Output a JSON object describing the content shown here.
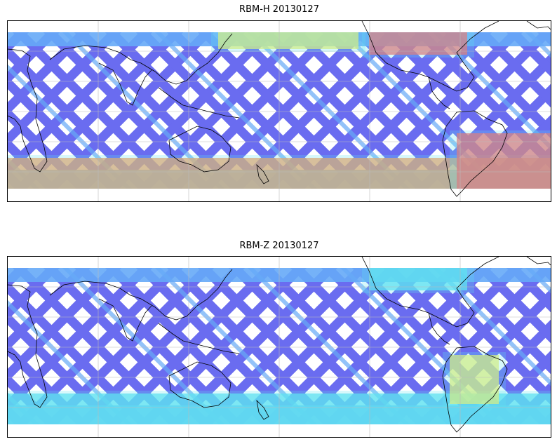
{
  "panels": [
    {
      "title": "RBM-H 20130127",
      "palette": {
        "track": "#6a6cf0",
        "mid": "#66aaf7",
        "cyan": "#5fe2f0",
        "green": "#9ff08e",
        "yellow": "#f5f06a",
        "orange": "#ff9a55",
        "red": "#ff6060"
      },
      "highlights": [
        {
          "region": "north-pacific-band",
          "color": "#f5f06a"
        },
        {
          "region": "north-atlantic-band",
          "color": "#ff6060"
        },
        {
          "region": "southern-ocean-band",
          "color": "#ff9a55"
        },
        {
          "region": "south-atlantic",
          "color": "#ff6060"
        }
      ]
    },
    {
      "title": "RBM-Z 20130127",
      "palette": {
        "track": "#6a6cf0",
        "mid": "#66aaf7",
        "cyan": "#5fe2f0",
        "green": "#9ff08e",
        "yellow": "#f5f06a"
      },
      "highlights": [
        {
          "region": "north-atlantic-band",
          "color": "#5fe2f0"
        },
        {
          "region": "southern-ocean-band",
          "color": "#5fe2f0"
        },
        {
          "region": "south-america-east",
          "color": "#f5f06a"
        }
      ]
    }
  ]
}
